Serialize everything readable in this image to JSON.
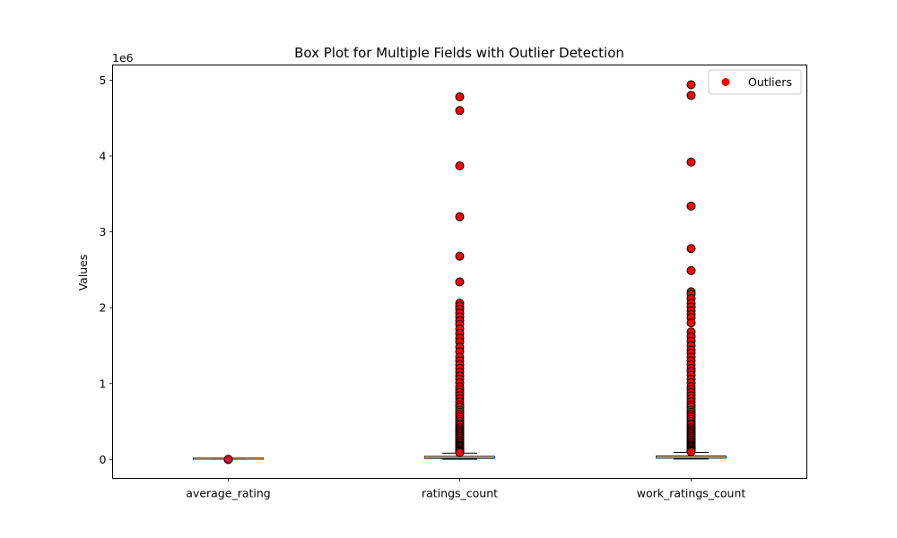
{
  "chart_data": {
    "type": "box",
    "title": "Box Plot for Multiple Fields with Outlier Detection",
    "xlabel": "",
    "ylabel": "Values",
    "offset_text": "1e6",
    "ylim": [
      -250000,
      5200000
    ],
    "yticks": [
      0,
      1000000,
      2000000,
      3000000,
      4000000,
      5000000
    ],
    "ytick_labels": [
      "0",
      "1",
      "2",
      "3",
      "4",
      "5"
    ],
    "grid": false,
    "legend": {
      "position": "upper right",
      "entries": [
        "Outliers"
      ]
    },
    "colors": {
      "outlier_fill": "#ff0000",
      "outlier_edge": "#000000",
      "box_fill": "#ff7f0e",
      "median": "#ff7f0e",
      "whisker": "#000000"
    },
    "categories": [
      "average_rating",
      "ratings_count",
      "work_ratings_count"
    ],
    "boxes": [
      {
        "name": "average_rating",
        "min": 2.47,
        "q1": 3.85,
        "median": 4.02,
        "q3": 4.18,
        "max": 4.82,
        "outliers": [
          2.4,
          2.6,
          2.8,
          4.9
        ]
      },
      {
        "name": "ratings_count",
        "min": 2716,
        "q1": 13600,
        "median": 21200,
        "q3": 41000,
        "max": 82000,
        "outliers": [
          4780000,
          4600000,
          3870000,
          3200000,
          2680000,
          2340000,
          2060000,
          2020000,
          1980000,
          1930000,
          1880000,
          1830000,
          1780000,
          1720000,
          1660000,
          1600000,
          1550000,
          1480000,
          1420000,
          1350000,
          1300000,
          1250000,
          1200000,
          1150000,
          1100000,
          1060000,
          1010000,
          960000,
          920000,
          880000,
          840000,
          800000,
          760000,
          720000,
          690000,
          650000,
          620000,
          590000,
          560000,
          530000,
          500000,
          470000,
          450000,
          420000,
          400000,
          380000,
          360000,
          340000,
          320000,
          300000,
          280000,
          260000,
          240000,
          220000,
          200000,
          185000,
          170000,
          155000,
          140000,
          125000,
          112000,
          100000,
          90000
        ]
      },
      {
        "name": "work_ratings_count",
        "min": 5510,
        "q1": 15500,
        "median": 23800,
        "q3": 45900,
        "max": 93000,
        "outliers": [
          4940000,
          4800000,
          3920000,
          3340000,
          2780000,
          2490000,
          2210000,
          2180000,
          2120000,
          2060000,
          2010000,
          1960000,
          1910000,
          1870000,
          1800000,
          1680000,
          1620000,
          1560000,
          1500000,
          1440000,
          1400000,
          1350000,
          1300000,
          1250000,
          1200000,
          1160000,
          1110000,
          1060000,
          1010000,
          960000,
          920000,
          880000,
          840000,
          800000,
          760000,
          720000,
          690000,
          650000,
          620000,
          590000,
          560000,
          530000,
          500000,
          470000,
          450000,
          420000,
          400000,
          380000,
          360000,
          340000,
          320000,
          300000,
          280000,
          260000,
          240000,
          220000,
          200000,
          185000,
          170000,
          155000,
          140000,
          125000,
          112000,
          100000
        ]
      }
    ]
  }
}
